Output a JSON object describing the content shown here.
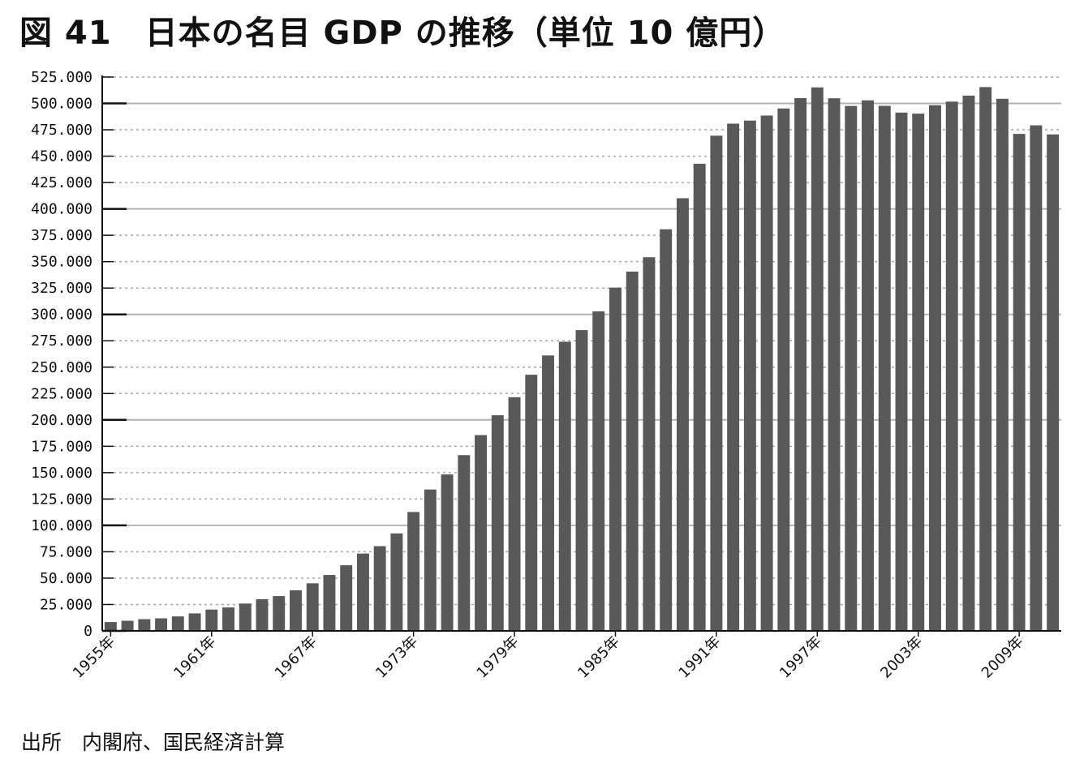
{
  "title": "図 41　日本の名目 GDP の推移（単位 10 億円）",
  "source": "出所　内閣府、国民経済計算",
  "colors": {
    "bar": "#595959",
    "axis": "#111111",
    "major_grid": "#b3b3b3",
    "minor_grid": "#a6a6a6",
    "text": "#111111"
  },
  "chart_data": {
    "type": "bar",
    "title": "図 41　日本の名目 GDP の推移（単位 10 億円）",
    "xlabel": "",
    "ylabel": "",
    "ylim": [
      0,
      525
    ],
    "grid": "major solid every 100, dashed every 25",
    "y_tick_labels": [
      "0",
      "25.000",
      "50.000",
      "75.000",
      "100.000",
      "125.000",
      "150.000",
      "175.000",
      "200.000",
      "225.000",
      "250.000",
      "275.000",
      "300.000",
      "325.000",
      "350.000",
      "375.000",
      "400.000",
      "425.000",
      "450.000",
      "475.000",
      "500.000",
      "525.000"
    ],
    "x_tick_labels": [
      "1955年",
      "1961年",
      "1967年",
      "1973年",
      "1979年",
      "1985年",
      "1991年",
      "1997年",
      "2003年",
      "2009年"
    ],
    "categories": [
      1955,
      1956,
      1957,
      1958,
      1959,
      1960,
      1961,
      1962,
      1963,
      1964,
      1965,
      1966,
      1967,
      1968,
      1969,
      1970,
      1971,
      1972,
      1973,
      1974,
      1975,
      1976,
      1977,
      1978,
      1979,
      1980,
      1981,
      1982,
      1983,
      1984,
      1985,
      1986,
      1987,
      1988,
      1989,
      1990,
      1991,
      1992,
      1993,
      1994,
      1995,
      1996,
      1997,
      1998,
      1999,
      2000,
      2001,
      2002,
      2003,
      2004,
      2005,
      2006,
      2007,
      2008,
      2009,
      2010,
      2011
    ],
    "values": [
      8.4,
      9.6,
      11.1,
      11.9,
      13.7,
      16.6,
      20.2,
      22.2,
      25.9,
      30.0,
      33.0,
      38.5,
      45.1,
      53.0,
      62.2,
      73.3,
      80.3,
      92.4,
      112.7,
      134.0,
      148.3,
      166.6,
      185.6,
      204.4,
      221.5,
      242.8,
      261.1,
      274.1,
      285.1,
      302.9,
      325.4,
      340.6,
      354.2,
      380.7,
      410.1,
      442.8,
      469.4,
      480.8,
      483.7,
      488.5,
      495.2,
      505.0,
      515.2,
      504.9,
      497.6,
      502.9,
      497.7,
      491.3,
      490.3,
      498.3,
      501.7,
      507.4,
      515.5,
      504.4,
      471.1,
      479.2,
      470.6
    ]
  }
}
